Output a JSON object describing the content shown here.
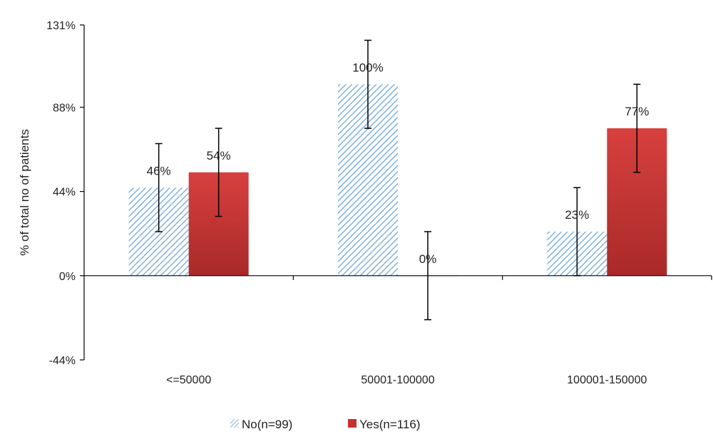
{
  "chart_data": {
    "type": "bar",
    "title": "",
    "xlabel": "",
    "ylabel": "% of total no of patients",
    "ylim": [
      -44,
      131
    ],
    "yticks": [
      -44,
      0,
      44,
      88,
      131
    ],
    "ytick_labels": [
      "-44%",
      "0%",
      "44%",
      "88%",
      "131%"
    ],
    "categories": [
      "<=50000",
      "50001-100000",
      "100001-150000"
    ],
    "series": [
      {
        "name": "No(n=99)",
        "values": [
          46,
          100,
          23
        ],
        "labels": [
          "46%",
          "100%",
          "23%"
        ],
        "error_low": [
          23,
          77,
          0
        ],
        "error_high": [
          69,
          123,
          46
        ],
        "fill": "hatch",
        "color": "#7fb2e0"
      },
      {
        "name": "Yes(n=116)",
        "values": [
          54,
          0,
          77
        ],
        "labels": [
          "54%",
          "0%",
          "77%"
        ],
        "error_low": [
          31,
          -23,
          54
        ],
        "error_high": [
          77,
          23,
          100
        ],
        "fill": "gradient",
        "color": "#d7403e",
        "color_dark": "#a92a29"
      }
    ],
    "grid": false,
    "legend_position": "bottom"
  }
}
